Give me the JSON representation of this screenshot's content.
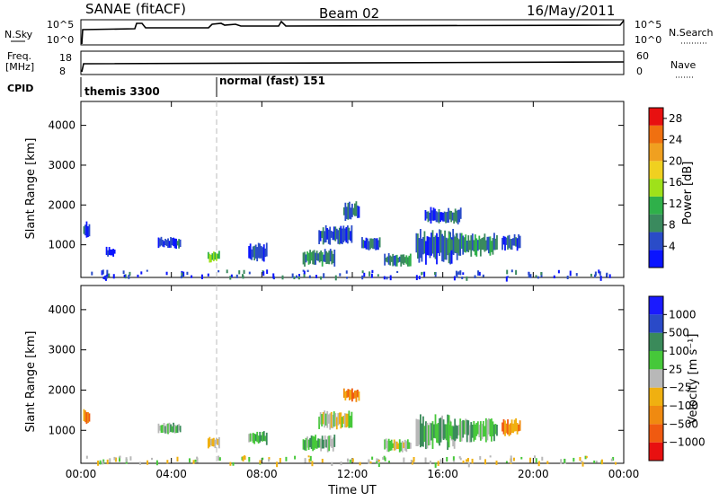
{
  "header": {
    "title": "SANAE (fitACF)",
    "beam": "Beam 02",
    "date": "16/May/2011"
  },
  "strips": {
    "nsky": {
      "label": "N.Sky",
      "ticks": [
        "10^5",
        "10^0"
      ]
    },
    "nsearch": {
      "label": "N.Search",
      "ticks": [
        "10^5",
        "10^0"
      ]
    },
    "freq": {
      "label_line1": "Freq.",
      "label_line2": "[MHz]",
      "ticks": [
        "18",
        "8"
      ]
    },
    "nave": {
      "label": "Nave",
      "ticks": [
        "60",
        "0"
      ]
    },
    "cpid": {
      "label": "CPID",
      "segments": [
        {
          "start_hour": 0.0,
          "label": "themis 3300"
        },
        {
          "start_hour": 6.0,
          "label": "normal (fast) 151"
        }
      ]
    }
  },
  "colors": {
    "power_scale": [
      "#0a14ff",
      "#2a4cc8",
      "#3a8a5e",
      "#2fb04a",
      "#9fe11a",
      "#f0d020",
      "#f0a020",
      "#f07010",
      "#e81010"
    ],
    "velocity_scale": [
      "#1a1aff",
      "#2a4ac8",
      "#3a8a5a",
      "#46c83a",
      "#b8b8b8",
      "#f0b010",
      "#f08a10",
      "#f05a10",
      "#e81010"
    ]
  },
  "chart_data": [
    {
      "type": "heatmap",
      "name": "power-panel",
      "xlabel": "",
      "ylabel": "Slant Range [km]",
      "xlim": [
        0,
        24
      ],
      "ylim": [
        180,
        4600
      ],
      "yticks": [
        "1000",
        "2000",
        "3000",
        "4000"
      ],
      "ytick_values": [
        1000,
        2000,
        3000,
        4000
      ],
      "colorbar": {
        "label": "Power [dB]",
        "ticks": [
          "4",
          "8",
          "12",
          "16",
          "20",
          "24",
          "28"
        ],
        "range": [
          0,
          30
        ]
      },
      "patches": [
        {
          "t0": 0.1,
          "t1": 0.4,
          "r0": 1150,
          "r1": 1600,
          "level": 1
        },
        {
          "t0": 1.1,
          "t1": 1.5,
          "r0": 700,
          "r1": 950,
          "level": 0
        },
        {
          "t0": 3.4,
          "t1": 4.4,
          "r0": 900,
          "r1": 1200,
          "level": 1
        },
        {
          "t0": 5.6,
          "t1": 6.1,
          "r0": 550,
          "r1": 850,
          "level": 3
        },
        {
          "t0": 7.4,
          "t1": 8.2,
          "r0": 550,
          "r1": 1050,
          "level": 1
        },
        {
          "t0": 9.8,
          "t1": 11.2,
          "r0": 450,
          "r1": 900,
          "level": 2
        },
        {
          "t0": 10.5,
          "t1": 12.0,
          "r0": 1000,
          "r1": 1500,
          "level": 1
        },
        {
          "t0": 11.6,
          "t1": 12.3,
          "r0": 1600,
          "r1": 2100,
          "level": 1
        },
        {
          "t0": 12.4,
          "t1": 13.2,
          "r0": 850,
          "r1": 1200,
          "level": 1
        },
        {
          "t0": 13.4,
          "t1": 14.6,
          "r0": 450,
          "r1": 800,
          "level": 2
        },
        {
          "t0": 14.8,
          "t1": 16.6,
          "r0": 500,
          "r1": 1400,
          "level": 1
        },
        {
          "t0": 15.2,
          "t1": 16.8,
          "r0": 1500,
          "r1": 1950,
          "level": 1
        },
        {
          "t0": 16.2,
          "t1": 18.4,
          "r0": 700,
          "r1": 1300,
          "level": 2
        },
        {
          "t0": 18.6,
          "t1": 19.4,
          "r0": 850,
          "r1": 1300,
          "level": 1
        }
      ]
    },
    {
      "type": "heatmap",
      "name": "velocity-panel",
      "xlabel": "Time UT",
      "ylabel": "Slant Range [km]",
      "xlim": [
        0,
        24
      ],
      "ylim": [
        180,
        4600
      ],
      "xticks": [
        "00:00",
        "04:00",
        "08:00",
        "12:00",
        "16:00",
        "20:00",
        "00:00"
      ],
      "xtick_values": [
        0,
        4,
        8,
        12,
        16,
        20,
        24
      ],
      "yticks": [
        "1000",
        "2000",
        "3000",
        "4000"
      ],
      "ytick_values": [
        1000,
        2000,
        3000,
        4000
      ],
      "colorbar": {
        "label": "Velocity [m s⁻¹]",
        "ticks": [
          "1000",
          "500",
          "100",
          "25",
          "−25",
          "−100",
          "−500",
          "−1000"
        ]
      },
      "patches": [
        {
          "t0": 0.1,
          "t1": 0.4,
          "r0": 1150,
          "r1": 1550,
          "level": 6
        },
        {
          "t0": 3.4,
          "t1": 4.4,
          "r0": 900,
          "r1": 1200,
          "level": 3
        },
        {
          "t0": 5.6,
          "t1": 6.1,
          "r0": 550,
          "r1": 850,
          "level": 5
        },
        {
          "t0": 7.4,
          "t1": 8.2,
          "r0": 600,
          "r1": 1000,
          "level": 3
        },
        {
          "t0": 9.8,
          "t1": 11.2,
          "r0": 450,
          "r1": 900,
          "level": 3
        },
        {
          "t0": 10.5,
          "t1": 12.0,
          "r0": 1000,
          "r1": 1500,
          "level": 4
        },
        {
          "t0": 11.6,
          "t1": 12.3,
          "r0": 1700,
          "r1": 2050,
          "level": 6
        },
        {
          "t0": 13.4,
          "t1": 14.6,
          "r0": 450,
          "r1": 800,
          "level": 4
        },
        {
          "t0": 14.8,
          "t1": 16.6,
          "r0": 500,
          "r1": 1400,
          "level": 3
        },
        {
          "t0": 16.2,
          "t1": 18.4,
          "r0": 700,
          "r1": 1300,
          "level": 3
        },
        {
          "t0": 18.6,
          "t1": 19.4,
          "r0": 850,
          "r1": 1300,
          "level": 6
        }
      ]
    }
  ]
}
